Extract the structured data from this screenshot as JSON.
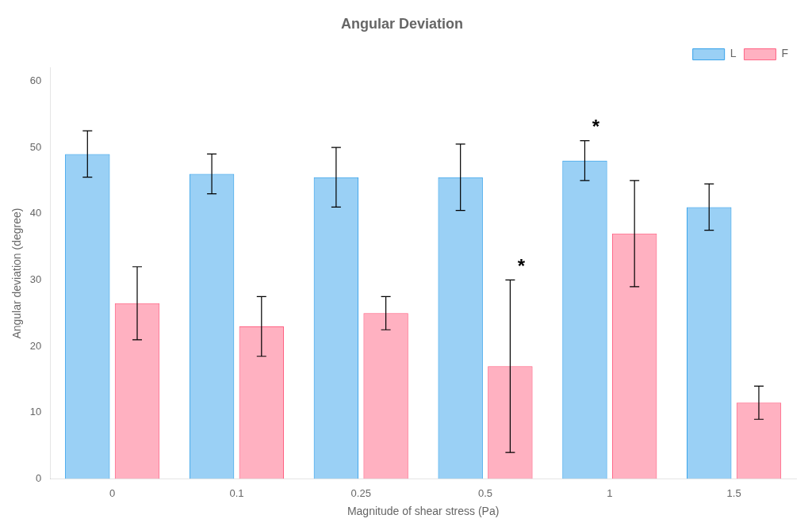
{
  "chart_data": {
    "type": "bar",
    "title": "Angular Deviation",
    "xlabel": "Magnitude of shear stress (Pa)",
    "ylabel": "Angular deviation (degree)",
    "categories": [
      "0",
      "0.1",
      "0.25",
      "0.5",
      "1",
      "1.5"
    ],
    "series": [
      {
        "name": "L",
        "values": [
          49.0,
          46.0,
          45.5,
          45.5,
          48.0,
          41.0
        ],
        "errors": [
          3.5,
          3.0,
          4.5,
          5.0,
          3.0,
          3.5
        ]
      },
      {
        "name": "F",
        "values": [
          26.5,
          23.0,
          25.0,
          17.0,
          37.0,
          11.5
        ],
        "errors": [
          5.5,
          4.5,
          2.5,
          13.0,
          8.0,
          2.5
        ]
      }
    ],
    "ylim": [
      0,
      62
    ],
    "yticks": [
      0,
      10,
      20,
      30,
      40,
      50,
      60
    ],
    "grid": false,
    "legend": "upper right",
    "annotations": [
      {
        "text": "*",
        "series": "F",
        "category": "0.5"
      },
      {
        "text": "*",
        "series": "L",
        "category": "1"
      }
    ]
  }
}
